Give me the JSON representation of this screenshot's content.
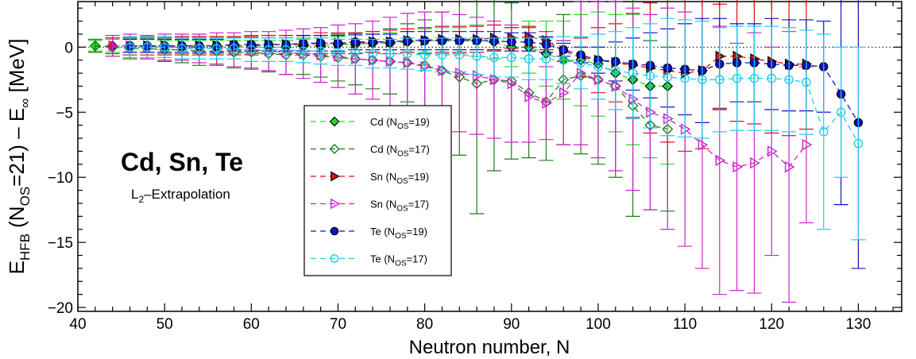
{
  "chart_data": {
    "type": "scatter",
    "title": "",
    "annotation_main": "Cd, Sn, Te",
    "annotation_sub": {
      "base": "L",
      "sub": "2",
      "rest": "–Extrapolation"
    },
    "xlabel": "Neutron number, N",
    "ylabel": {
      "t1": "E",
      "s1": "HFB",
      "t2": " (N",
      "s2": "OS",
      "t3": "=21) – E",
      "s3": "∞",
      "t4": "  [MeV]"
    },
    "xlim": [
      40,
      135
    ],
    "ylim": [
      -20.3,
      3.5
    ],
    "xticks": [
      40,
      50,
      60,
      70,
      80,
      90,
      100,
      110,
      120,
      130
    ],
    "yticks": [
      0,
      -5,
      -10,
      -15,
      -20
    ],
    "xtick_labels": [
      "40",
      "50",
      "60",
      "70",
      "80",
      "90",
      "100",
      "110",
      "120",
      "130"
    ],
    "ytick_labels": [
      "0",
      "−5",
      "−10",
      "−15",
      "−20"
    ],
    "grid": false,
    "reference_line": {
      "y": 0,
      "style": "dotted"
    },
    "legend_position": "center",
    "series": [
      {
        "name": "Cd (N_OS=19)",
        "name_base": "Cd (N",
        "name_sub": "OS",
        "name_rest": "=19)",
        "color": "#22dd22",
        "marker": "diamond",
        "filled": true,
        "x": [
          42,
          44,
          46,
          48,
          50,
          52,
          54,
          56,
          58,
          60,
          62,
          64,
          66,
          68,
          70,
          72,
          74,
          76,
          78,
          80,
          82,
          84,
          86,
          88,
          90,
          92,
          94,
          96,
          98,
          100,
          102,
          104,
          106,
          108
        ],
        "y": [
          0.1,
          0.1,
          0.1,
          0.1,
          0.0,
          0.0,
          0.0,
          0.0,
          0.0,
          0.0,
          0.0,
          0.0,
          0.1,
          0.1,
          0.2,
          0.2,
          0.3,
          0.3,
          0.4,
          0.5,
          0.5,
          0.5,
          0.5,
          0.4,
          0.0,
          0.0,
          -0.5,
          -1.0,
          -1.0,
          -1.3,
          -2.0,
          -2.5,
          -3.0,
          -3.0
        ],
        "err": [
          0.4,
          0.5,
          0.5,
          0.5,
          0.5,
          0.5,
          0.5,
          0.5,
          0.5,
          0.5,
          0.5,
          0.5,
          0.6,
          0.6,
          0.6,
          0.7,
          0.7,
          0.8,
          0.8,
          0.9,
          1.0,
          1.0,
          1.2,
          1.3,
          1.5,
          2.0,
          2.5,
          3.0,
          3.5,
          4.0,
          4.5,
          5.0,
          5.5,
          6.0
        ]
      },
      {
        "name": "Cd (N_OS=17)",
        "name_base": "Cd (N",
        "name_sub": "OS",
        "name_rest": "=17)",
        "color": "#1a7f1a",
        "marker": "diamond",
        "filled": false,
        "x": [
          42,
          44,
          46,
          48,
          50,
          52,
          54,
          56,
          58,
          60,
          62,
          64,
          66,
          68,
          70,
          72,
          74,
          76,
          78,
          80,
          82,
          84,
          86,
          88,
          90,
          92,
          94,
          96,
          98,
          100,
          102,
          104,
          106,
          108
        ],
        "y": [
          0.1,
          0.0,
          -0.1,
          -0.1,
          -0.2,
          -0.2,
          -0.3,
          -0.3,
          -0.4,
          -0.4,
          -0.5,
          -0.6,
          -0.6,
          -0.7,
          -0.8,
          -0.9,
          -1.0,
          -1.1,
          -1.2,
          -1.4,
          -1.8,
          -2.3,
          -2.8,
          -2.5,
          -2.6,
          -3.5,
          -4.2,
          -2.5,
          -2.2,
          -2.5,
          -3.0,
          -4.5,
          -6.0,
          -6.3
        ],
        "err": [
          0.5,
          0.7,
          0.8,
          0.8,
          0.9,
          1.0,
          1.1,
          1.1,
          1.2,
          1.3,
          1.4,
          1.5,
          1.5,
          1.6,
          1.8,
          2.0,
          2.2,
          2.5,
          3.0,
          3.5,
          4.5,
          6.0,
          10.0,
          7.0,
          6.0,
          5.0,
          4.5,
          5.0,
          6.0,
          6.5,
          7.0,
          8.5,
          6.5,
          6.3
        ]
      },
      {
        "name": "Sn (N_OS=19)",
        "name_base": "Sn (N",
        "name_sub": "OS",
        "name_rest": "=19)",
        "color": "#dd1111",
        "marker": "triangle-right",
        "filled": true,
        "x": [
          44,
          46,
          48,
          50,
          52,
          54,
          56,
          58,
          60,
          62,
          64,
          66,
          68,
          70,
          72,
          74,
          76,
          78,
          80,
          82,
          84,
          86,
          88,
          90,
          92,
          94,
          96,
          98,
          100,
          102,
          104,
          106,
          108,
          110,
          112,
          114,
          116,
          118,
          120,
          122,
          124
        ],
        "y": [
          0.1,
          0.1,
          0.1,
          0.1,
          0.1,
          0.1,
          0.1,
          0.1,
          0.1,
          0.2,
          0.2,
          0.2,
          0.3,
          0.3,
          0.3,
          0.4,
          0.4,
          0.5,
          0.5,
          0.6,
          0.6,
          0.6,
          0.7,
          0.7,
          0.8,
          0.5,
          -0.3,
          -0.8,
          -1.0,
          -1.2,
          -1.4,
          -1.6,
          -1.8,
          -2.0,
          -1.8,
          -0.7,
          -0.7,
          -0.9,
          -1.1,
          -1.3,
          -1.3
        ],
        "err": [
          0.6,
          0.7,
          0.7,
          0.7,
          0.7,
          0.7,
          0.7,
          0.7,
          0.7,
          0.7,
          0.7,
          0.7,
          0.8,
          0.8,
          0.8,
          0.8,
          0.9,
          0.9,
          1.0,
          1.0,
          1.0,
          1.0,
          1.0,
          0.8,
          0.8,
          0.7,
          0.8,
          1.5,
          2.5,
          3.0,
          4.0,
          5.0,
          5.5,
          6.0,
          6.0,
          4.0,
          5.0,
          5.0,
          5.5,
          5.5,
          5.0
        ]
      },
      {
        "name": "Sn (N_OS=17)",
        "name_base": "Sn (N",
        "name_sub": "OS",
        "name_rest": "=17)",
        "color": "#cc22cc",
        "marker": "triangle-right",
        "filled": false,
        "x": [
          44,
          46,
          48,
          50,
          52,
          54,
          56,
          58,
          60,
          62,
          64,
          66,
          68,
          70,
          72,
          74,
          76,
          78,
          80,
          82,
          84,
          86,
          88,
          90,
          92,
          94,
          96,
          98,
          100,
          102,
          104,
          106,
          108,
          110,
          112,
          114,
          116,
          118,
          120,
          122,
          124
        ],
        "y": [
          0.1,
          0.1,
          0.0,
          0.0,
          0.0,
          -0.1,
          -0.1,
          -0.2,
          -0.2,
          -0.3,
          -0.4,
          -0.5,
          -0.6,
          -0.7,
          -0.9,
          -1.0,
          -1.1,
          -1.2,
          -1.5,
          -1.8,
          -2.0,
          -2.2,
          -2.5,
          -2.8,
          -3.8,
          -4.3,
          -3.5,
          -2.0,
          -2.5,
          -3.0,
          -4.0,
          -5.0,
          -5.5,
          -6.3,
          -7.5,
          -8.7,
          -9.2,
          -8.9,
          -8.0,
          -9.2,
          -7.5
        ],
        "err": [
          0.8,
          0.9,
          0.9,
          1.0,
          1.0,
          1.1,
          1.2,
          1.3,
          1.4,
          1.5,
          1.7,
          1.9,
          2.1,
          2.4,
          2.7,
          3.0,
          3.4,
          3.8,
          4.2,
          4.5,
          4.5,
          4.5,
          4.5,
          4.5,
          3.5,
          2.8,
          4.0,
          5.5,
          6.0,
          6.5,
          7.0,
          7.5,
          8.5,
          9.0,
          9.5,
          10.3,
          9.5,
          10.0,
          8.0,
          10.4,
          6.0
        ]
      },
      {
        "name": "Te (N_OS=19)",
        "name_base": "Te (N",
        "name_sub": "OS",
        "name_rest": "=19)",
        "color": "#1111cc",
        "marker": "circle",
        "filled": true,
        "x": [
          46,
          48,
          50,
          52,
          54,
          56,
          58,
          60,
          62,
          64,
          66,
          68,
          70,
          72,
          74,
          76,
          78,
          80,
          82,
          84,
          86,
          88,
          90,
          92,
          94,
          96,
          98,
          100,
          102,
          104,
          106,
          108,
          110,
          112,
          114,
          116,
          118,
          120,
          122,
          124,
          126,
          128,
          130
        ],
        "y": [
          0.1,
          0.1,
          0.1,
          0.1,
          0.1,
          0.1,
          0.2,
          0.2,
          0.2,
          0.2,
          0.3,
          0.3,
          0.3,
          0.4,
          0.4,
          0.4,
          0.5,
          0.5,
          0.5,
          0.5,
          0.5,
          0.5,
          0.4,
          0.4,
          0.2,
          -0.2,
          -0.6,
          -1.0,
          -1.1,
          -1.3,
          -1.4,
          -1.6,
          -1.7,
          -1.8,
          -1.3,
          -1.2,
          -1.2,
          -1.3,
          -1.4,
          -1.4,
          -1.5,
          -3.6,
          -5.8
        ],
        "err": [
          0.5,
          0.5,
          0.5,
          0.5,
          0.5,
          0.5,
          0.5,
          0.5,
          0.5,
          0.5,
          0.6,
          0.6,
          0.6,
          0.6,
          0.6,
          0.6,
          0.7,
          0.7,
          0.7,
          0.7,
          0.7,
          0.7,
          0.7,
          0.7,
          0.6,
          0.5,
          0.6,
          1.0,
          1.5,
          2.0,
          2.5,
          3.0,
          3.5,
          4.0,
          3.5,
          3.0,
          3.0,
          3.5,
          3.5,
          3.5,
          3.5,
          8.5,
          11.2
        ]
      },
      {
        "name": "Te (N_OS=17)",
        "name_base": "Te (N",
        "name_sub": "OS",
        "name_rest": "=17)",
        "color": "#22ccee",
        "marker": "circle",
        "filled": false,
        "x": [
          46,
          48,
          50,
          52,
          54,
          56,
          58,
          60,
          62,
          64,
          66,
          68,
          70,
          72,
          74,
          76,
          78,
          80,
          82,
          84,
          86,
          88,
          90,
          92,
          94,
          96,
          98,
          100,
          102,
          104,
          106,
          108,
          110,
          112,
          114,
          116,
          118,
          120,
          122,
          124,
          126,
          128,
          130
        ],
        "y": [
          0.0,
          0.0,
          0.0,
          -0.1,
          -0.1,
          -0.1,
          -0.1,
          -0.2,
          -0.2,
          -0.2,
          -0.3,
          -0.3,
          -0.4,
          -0.4,
          -0.5,
          -0.5,
          -0.5,
          -0.6,
          -0.6,
          -0.6,
          -0.7,
          -0.8,
          -0.8,
          -0.9,
          -0.9,
          -1.0,
          -1.2,
          -1.5,
          -1.8,
          -2.0,
          -2.2,
          -2.3,
          -2.4,
          -2.5,
          -2.5,
          -2.4,
          -2.4,
          -2.4,
          -2.5,
          -2.7,
          -6.5,
          -5.0,
          -7.4
        ],
        "err": [
          0.8,
          0.8,
          0.8,
          0.8,
          0.8,
          0.8,
          0.8,
          0.9,
          0.9,
          0.9,
          0.9,
          1.0,
          1.0,
          1.0,
          1.1,
          1.1,
          1.2,
          1.2,
          1.3,
          1.3,
          1.4,
          1.5,
          1.5,
          1.6,
          1.6,
          1.8,
          2.0,
          2.5,
          3.0,
          3.5,
          4.0,
          4.5,
          4.5,
          4.5,
          4.0,
          4.0,
          4.0,
          4.0,
          4.0,
          4.0,
          7.5,
          5.0,
          7.4
        ]
      }
    ]
  }
}
